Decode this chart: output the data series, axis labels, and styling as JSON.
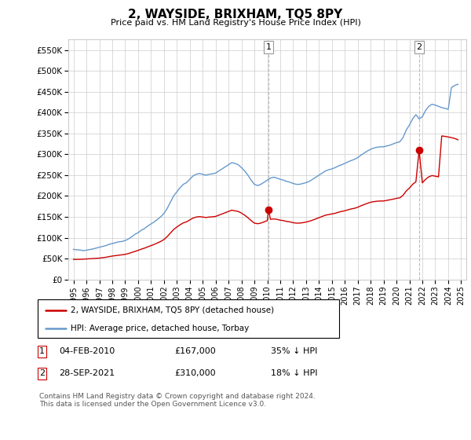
{
  "title": "2, WAYSIDE, BRIXHAM, TQ5 8PY",
  "subtitle": "Price paid vs. HM Land Registry's House Price Index (HPI)",
  "ylabel_ticks": [
    "£0",
    "£50K",
    "£100K",
    "£150K",
    "£200K",
    "£250K",
    "£300K",
    "£350K",
    "£400K",
    "£450K",
    "£500K",
    "£550K"
  ],
  "ytick_values": [
    0,
    50000,
    100000,
    150000,
    200000,
    250000,
    300000,
    350000,
    400000,
    450000,
    500000,
    550000
  ],
  "ylim": [
    0,
    575000
  ],
  "hpi_color": "#6699cc",
  "price_color": "#cc0000",
  "sale1_date": "04-FEB-2010",
  "sale1_price": "£167,000",
  "sale1_hpi": "35% ↓ HPI",
  "sale2_date": "28-SEP-2021",
  "sale2_price": "£310,000",
  "sale2_hpi": "18% ↓ HPI",
  "legend_line1": "2, WAYSIDE, BRIXHAM, TQ5 8PY (detached house)",
  "legend_line2": "HPI: Average price, detached house, Torbay",
  "footer": "Contains HM Land Registry data © Crown copyright and database right 2024.\nThis data is licensed under the Open Government Licence v3.0.",
  "hpi_data": [
    [
      1995.0,
      72000
    ],
    [
      1995.25,
      71000
    ],
    [
      1995.5,
      70500
    ],
    [
      1995.75,
      69000
    ],
    [
      1996.0,
      70000
    ],
    [
      1996.25,
      71500
    ],
    [
      1996.5,
      73000
    ],
    [
      1996.75,
      75000
    ],
    [
      1997.0,
      77000
    ],
    [
      1997.25,
      79000
    ],
    [
      1997.5,
      81000
    ],
    [
      1997.75,
      84000
    ],
    [
      1998.0,
      86000
    ],
    [
      1998.25,
      88000
    ],
    [
      1998.5,
      90000
    ],
    [
      1998.75,
      91000
    ],
    [
      1999.0,
      93000
    ],
    [
      1999.25,
      97000
    ],
    [
      1999.5,
      102000
    ],
    [
      1999.75,
      108000
    ],
    [
      2000.0,
      112000
    ],
    [
      2000.25,
      118000
    ],
    [
      2000.5,
      122000
    ],
    [
      2000.75,
      128000
    ],
    [
      2001.0,
      133000
    ],
    [
      2001.25,
      138000
    ],
    [
      2001.5,
      144000
    ],
    [
      2001.75,
      150000
    ],
    [
      2002.0,
      158000
    ],
    [
      2002.25,
      170000
    ],
    [
      2002.5,
      185000
    ],
    [
      2002.75,
      200000
    ],
    [
      2003.0,
      210000
    ],
    [
      2003.25,
      220000
    ],
    [
      2003.5,
      228000
    ],
    [
      2003.75,
      232000
    ],
    [
      2004.0,
      240000
    ],
    [
      2004.25,
      248000
    ],
    [
      2004.5,
      252000
    ],
    [
      2004.75,
      254000
    ],
    [
      2005.0,
      252000
    ],
    [
      2005.25,
      250000
    ],
    [
      2005.5,
      252000
    ],
    [
      2005.75,
      253000
    ],
    [
      2006.0,
      255000
    ],
    [
      2006.25,
      260000
    ],
    [
      2006.5,
      265000
    ],
    [
      2006.75,
      270000
    ],
    [
      2007.0,
      275000
    ],
    [
      2007.25,
      280000
    ],
    [
      2007.5,
      278000
    ],
    [
      2007.75,
      275000
    ],
    [
      2008.0,
      268000
    ],
    [
      2008.25,
      260000
    ],
    [
      2008.5,
      250000
    ],
    [
      2008.75,
      238000
    ],
    [
      2009.0,
      228000
    ],
    [
      2009.25,
      225000
    ],
    [
      2009.5,
      228000
    ],
    [
      2009.75,
      233000
    ],
    [
      2010.0,
      238000
    ],
    [
      2010.25,
      243000
    ],
    [
      2010.5,
      245000
    ],
    [
      2010.75,
      243000
    ],
    [
      2011.0,
      240000
    ],
    [
      2011.25,
      238000
    ],
    [
      2011.5,
      235000
    ],
    [
      2011.75,
      233000
    ],
    [
      2012.0,
      230000
    ],
    [
      2012.25,
      228000
    ],
    [
      2012.5,
      228000
    ],
    [
      2012.75,
      230000
    ],
    [
      2013.0,
      232000
    ],
    [
      2013.25,
      235000
    ],
    [
      2013.5,
      240000
    ],
    [
      2013.75,
      245000
    ],
    [
      2014.0,
      250000
    ],
    [
      2014.25,
      255000
    ],
    [
      2014.5,
      260000
    ],
    [
      2014.75,
      263000
    ],
    [
      2015.0,
      265000
    ],
    [
      2015.25,
      268000
    ],
    [
      2015.5,
      272000
    ],
    [
      2015.75,
      275000
    ],
    [
      2016.0,
      278000
    ],
    [
      2016.25,
      282000
    ],
    [
      2016.5,
      285000
    ],
    [
      2016.75,
      288000
    ],
    [
      2017.0,
      292000
    ],
    [
      2017.25,
      298000
    ],
    [
      2017.5,
      303000
    ],
    [
      2017.75,
      308000
    ],
    [
      2018.0,
      312000
    ],
    [
      2018.25,
      315000
    ],
    [
      2018.5,
      317000
    ],
    [
      2018.75,
      318000
    ],
    [
      2019.0,
      318000
    ],
    [
      2019.25,
      320000
    ],
    [
      2019.5,
      322000
    ],
    [
      2019.75,
      325000
    ],
    [
      2020.0,
      328000
    ],
    [
      2020.25,
      330000
    ],
    [
      2020.5,
      340000
    ],
    [
      2020.75,
      358000
    ],
    [
      2021.0,
      370000
    ],
    [
      2021.25,
      385000
    ],
    [
      2021.5,
      395000
    ],
    [
      2021.75,
      385000
    ],
    [
      2022.0,
      390000
    ],
    [
      2022.25,
      405000
    ],
    [
      2022.5,
      415000
    ],
    [
      2022.75,
      420000
    ],
    [
      2023.0,
      418000
    ],
    [
      2023.25,
      415000
    ],
    [
      2023.5,
      412000
    ],
    [
      2023.75,
      410000
    ],
    [
      2024.0,
      408000
    ],
    [
      2024.25,
      460000
    ],
    [
      2024.5,
      465000
    ],
    [
      2024.75,
      468000
    ]
  ],
  "price_data": [
    [
      1995.0,
      48000
    ],
    [
      1995.25,
      48000
    ],
    [
      1995.5,
      48200
    ],
    [
      1995.75,
      48500
    ],
    [
      1996.0,
      49000
    ],
    [
      1996.25,
      49500
    ],
    [
      1996.5,
      50000
    ],
    [
      1996.75,
      50500
    ],
    [
      1997.0,
      51000
    ],
    [
      1997.25,
      52000
    ],
    [
      1997.5,
      53000
    ],
    [
      1997.75,
      54500
    ],
    [
      1998.0,
      56000
    ],
    [
      1998.25,
      57000
    ],
    [
      1998.5,
      58000
    ],
    [
      1998.75,
      59000
    ],
    [
      1999.0,
      60000
    ],
    [
      1999.25,
      62000
    ],
    [
      1999.5,
      64500
    ],
    [
      1999.75,
      67000
    ],
    [
      2000.0,
      69500
    ],
    [
      2000.25,
      72500
    ],
    [
      2000.5,
      75000
    ],
    [
      2000.75,
      78000
    ],
    [
      2001.0,
      81000
    ],
    [
      2001.25,
      84000
    ],
    [
      2001.5,
      87500
    ],
    [
      2001.75,
      91000
    ],
    [
      2002.0,
      95500
    ],
    [
      2002.25,
      102500
    ],
    [
      2002.5,
      111000
    ],
    [
      2002.75,
      119500
    ],
    [
      2003.0,
      125500
    ],
    [
      2003.25,
      131000
    ],
    [
      2003.5,
      135500
    ],
    [
      2003.75,
      138000
    ],
    [
      2004.0,
      142500
    ],
    [
      2004.25,
      147000
    ],
    [
      2004.5,
      149500
    ],
    [
      2004.75,
      150500
    ],
    [
      2005.0,
      149500
    ],
    [
      2005.25,
      148500
    ],
    [
      2005.5,
      149500
    ],
    [
      2005.75,
      150000
    ],
    [
      2006.0,
      151000
    ],
    [
      2006.25,
      154000
    ],
    [
      2006.5,
      157000
    ],
    [
      2006.75,
      160000
    ],
    [
      2007.0,
      163000
    ],
    [
      2007.25,
      166000
    ],
    [
      2007.5,
      164500
    ],
    [
      2007.75,
      163000
    ],
    [
      2008.0,
      159000
    ],
    [
      2008.25,
      154000
    ],
    [
      2008.5,
      148000
    ],
    [
      2008.75,
      141000
    ],
    [
      2009.0,
      135000
    ],
    [
      2009.25,
      133500
    ],
    [
      2009.5,
      135000
    ],
    [
      2009.75,
      138000
    ],
    [
      2010.0,
      141000
    ],
    [
      2010.09,
      167000
    ],
    [
      2010.25,
      144000
    ],
    [
      2010.5,
      145000
    ],
    [
      2010.75,
      144000
    ],
    [
      2011.0,
      142000
    ],
    [
      2011.25,
      141000
    ],
    [
      2011.5,
      139000
    ],
    [
      2011.75,
      138000
    ],
    [
      2012.0,
      136000
    ],
    [
      2012.25,
      135000
    ],
    [
      2012.5,
      135000
    ],
    [
      2012.75,
      136000
    ],
    [
      2013.0,
      137500
    ],
    [
      2013.25,
      139500
    ],
    [
      2013.5,
      142000
    ],
    [
      2013.75,
      145000
    ],
    [
      2014.0,
      148000
    ],
    [
      2014.25,
      151000
    ],
    [
      2014.5,
      154000
    ],
    [
      2014.75,
      155500
    ],
    [
      2015.0,
      157000
    ],
    [
      2015.25,
      158500
    ],
    [
      2015.5,
      161000
    ],
    [
      2015.75,
      163000
    ],
    [
      2016.0,
      164500
    ],
    [
      2016.25,
      167000
    ],
    [
      2016.5,
      169000
    ],
    [
      2016.75,
      170500
    ],
    [
      2017.0,
      173000
    ],
    [
      2017.25,
      176500
    ],
    [
      2017.5,
      179500
    ],
    [
      2017.75,
      182500
    ],
    [
      2018.0,
      185000
    ],
    [
      2018.25,
      186500
    ],
    [
      2018.5,
      187500
    ],
    [
      2018.75,
      188000
    ],
    [
      2019.0,
      188000
    ],
    [
      2019.25,
      189500
    ],
    [
      2019.5,
      191000
    ],
    [
      2019.75,
      192500
    ],
    [
      2020.0,
      194500
    ],
    [
      2020.25,
      195500
    ],
    [
      2020.5,
      201500
    ],
    [
      2020.75,
      212000
    ],
    [
      2021.0,
      219000
    ],
    [
      2021.25,
      228000
    ],
    [
      2021.5,
      234000
    ],
    [
      2021.75,
      310000
    ],
    [
      2022.0,
      231500
    ],
    [
      2022.25,
      240000
    ],
    [
      2022.5,
      246000
    ],
    [
      2022.75,
      249000
    ],
    [
      2023.0,
      247500
    ],
    [
      2023.25,
      246000
    ],
    [
      2023.5,
      344000
    ],
    [
      2023.75,
      343000
    ],
    [
      2024.0,
      341500
    ],
    [
      2024.25,
      340000
    ],
    [
      2024.5,
      338000
    ],
    [
      2024.75,
      335000
    ]
  ],
  "marker1_x": 2010.09,
  "marker1_y": 167000,
  "marker2_x": 2021.75,
  "marker2_y": 310000,
  "vline1_x": 2010.09,
  "vline2_x": 2021.75,
  "xlim_left": 1994.6,
  "xlim_right": 2025.4
}
